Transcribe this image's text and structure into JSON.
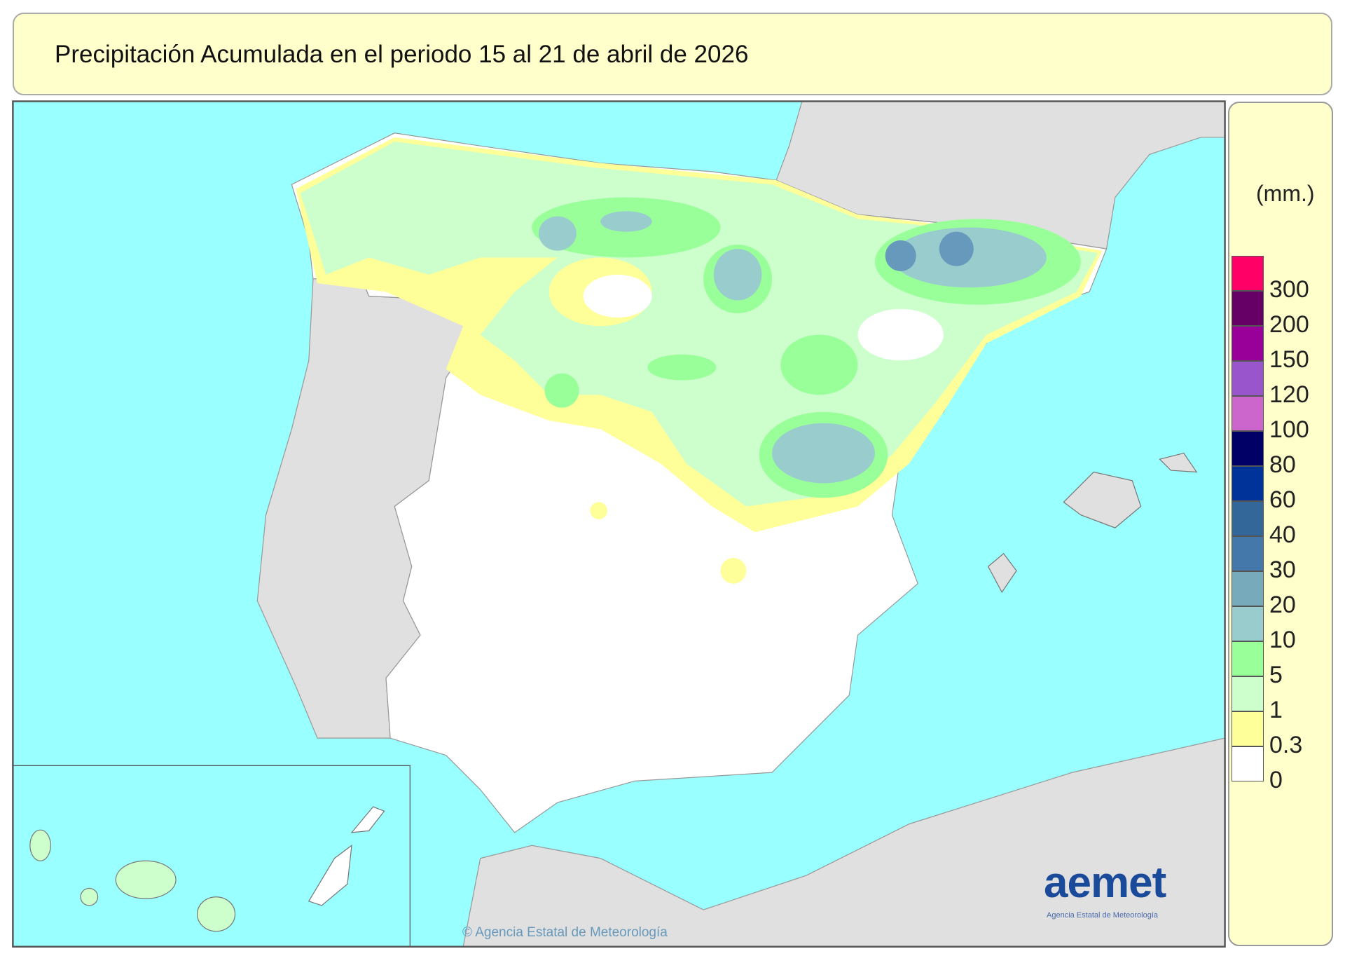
{
  "title": "Precipitación Acumulada en el periodo 15 al 21 de abril de 2026",
  "legend": {
    "unit": "(mm.)",
    "bins": [
      {
        "label": "300",
        "color": "#ff0066"
      },
      {
        "label": "200",
        "color": "#660066"
      },
      {
        "label": "150",
        "color": "#990099"
      },
      {
        "label": "120",
        "color": "#9955cc"
      },
      {
        "label": "100",
        "color": "#cc66cc"
      },
      {
        "label": "80",
        "color": "#000066"
      },
      {
        "label": "60",
        "color": "#003399"
      },
      {
        "label": "40",
        "color": "#336699"
      },
      {
        "label": "30",
        "color": "#4477aa"
      },
      {
        "label": "20",
        "color": "#77aabb"
      },
      {
        "label": "10",
        "color": "#99cccc"
      },
      {
        "label": "5",
        "color": "#99ff99"
      },
      {
        "label": "1",
        "color": "#ccffcc"
      },
      {
        "label": "0.3",
        "color": "#ffff99"
      },
      {
        "label": "0",
        "color": "#ffffff"
      }
    ]
  },
  "colors": {
    "sea": "#99ffff",
    "land_other": "#e0e0e0",
    "land_spain": "#ffffff"
  },
  "copyright": "© Agencia Estatal de Meteorología",
  "logo": {
    "name": "aemet",
    "subtitle": "Agencia Estatal de Meteorología"
  }
}
